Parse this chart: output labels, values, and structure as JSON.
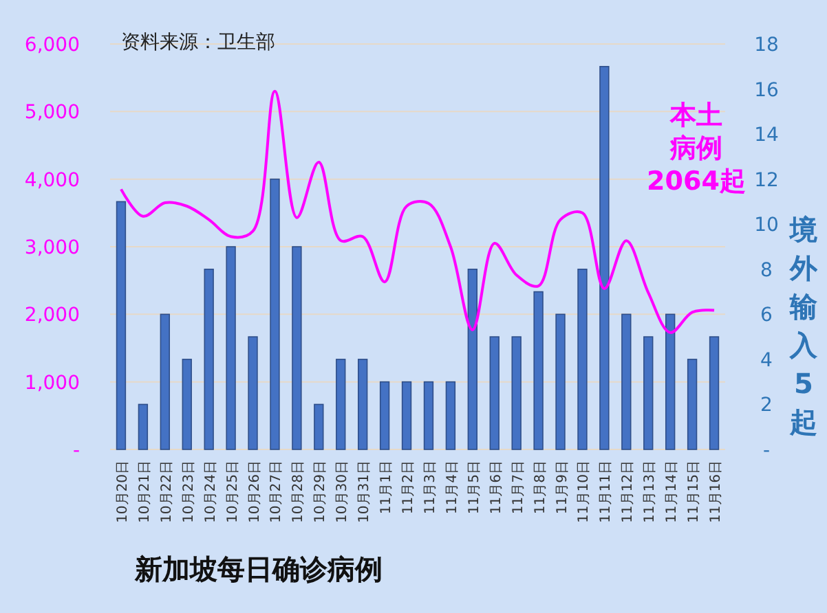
{
  "chart_data": {
    "type": "bar",
    "title": "新加坡每日确诊病例",
    "annotations": [
      "资料来源：卫生部"
    ],
    "y2label": "境外输入5起",
    "categories": [
      "10月20日",
      "10月21日",
      "10月22日",
      "10月23日",
      "10月24日",
      "10月25日",
      "10月26日",
      "10月27日",
      "10月28日",
      "10月29日",
      "10月30日",
      "10月31日",
      "11月1日",
      "11月2日",
      "11月3日",
      "11月4日",
      "11月5日",
      "11月6日",
      "11月7日",
      "11月8日",
      "11月9日",
      "11月10日",
      "11月11日",
      "11月12日",
      "11月13日",
      "11月14日",
      "11月15日",
      "11月16日"
    ],
    "series": [
      {
        "axis": "y2",
        "color": "#4472c4",
        "values": [
          11,
          2,
          6,
          4,
          8,
          9,
          5,
          12,
          9,
          2,
          4,
          4,
          3,
          3,
          3,
          3,
          8,
          5,
          5,
          7,
          6,
          8,
          17,
          6,
          5,
          6,
          4,
          5
        ]
      },
      {
        "type": "line",
        "axis": "y",
        "name": "本土病例2064起",
        "color": "#ff00ff",
        "values": [
          3850,
          3450,
          3650,
          3600,
          3400,
          3150,
          3230,
          5300,
          3430,
          4250,
          3090,
          3150,
          2480,
          3600,
          3640,
          3000,
          1770,
          3050,
          2580,
          2420,
          3400,
          3500,
          2380,
          3090,
          2320,
          1730,
          2030,
          2060
        ]
      }
    ],
    "ylim": [
      0,
      6000
    ],
    "yticks": [
      {
        "value": 0,
        "label": "-"
      },
      {
        "value": 1000,
        "label": "1,000"
      },
      {
        "value": 2000,
        "label": "2,000"
      },
      {
        "value": 3000,
        "label": "3,000"
      },
      {
        "value": 4000,
        "label": "4,000"
      },
      {
        "value": 5000,
        "label": "5,000"
      },
      {
        "value": 6000,
        "label": "6,000"
      }
    ],
    "y2lim": [
      0,
      18
    ],
    "y2ticks": [
      {
        "value": 0,
        "label": "-"
      },
      2,
      4,
      6,
      8,
      10,
      12,
      14,
      16,
      18
    ],
    "grid": "y",
    "line_style": "solid",
    "marker": "none"
  }
}
